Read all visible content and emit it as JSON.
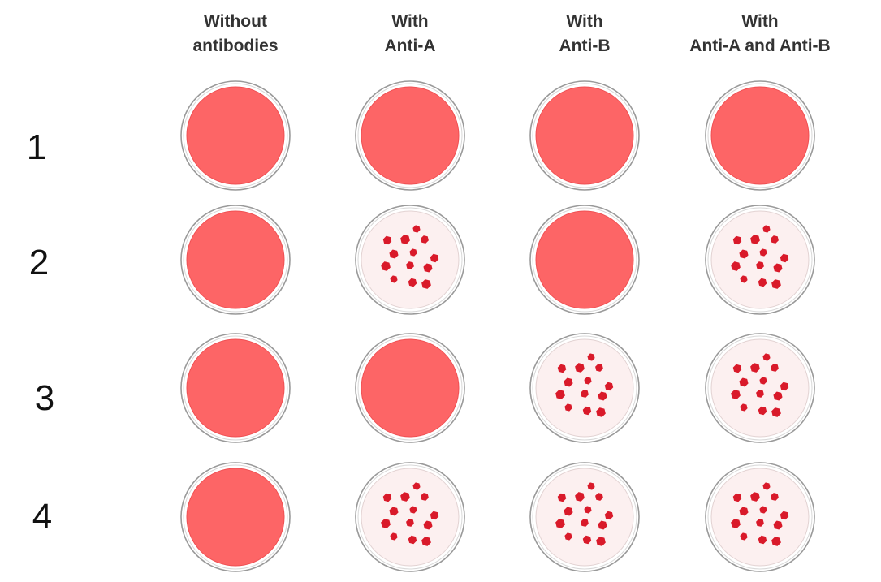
{
  "columns": [
    {
      "line1": "Without",
      "line2": "antibodies"
    },
    {
      "line1": "With",
      "line2": "Anti-A"
    },
    {
      "line1": "With",
      "line2": "Anti-B"
    },
    {
      "line1": "With",
      "line2": "Anti-A and Anti-B"
    }
  ],
  "rows": [
    {
      "label": "1",
      "wells": [
        "uniform",
        "uniform",
        "uniform",
        "uniform"
      ]
    },
    {
      "label": "2",
      "wells": [
        "uniform",
        "clumped",
        "uniform",
        "clumped"
      ]
    },
    {
      "label": "3",
      "wells": [
        "uniform",
        "uniform",
        "clumped",
        "clumped"
      ]
    },
    {
      "label": "4",
      "wells": [
        "uniform",
        "clumped",
        "clumped",
        "clumped"
      ]
    }
  ],
  "colors": {
    "blood": "#fd6566",
    "clump": "#d91a2a",
    "clear_plate": "#fcf0f0",
    "rim": "#9a9a9a"
  }
}
